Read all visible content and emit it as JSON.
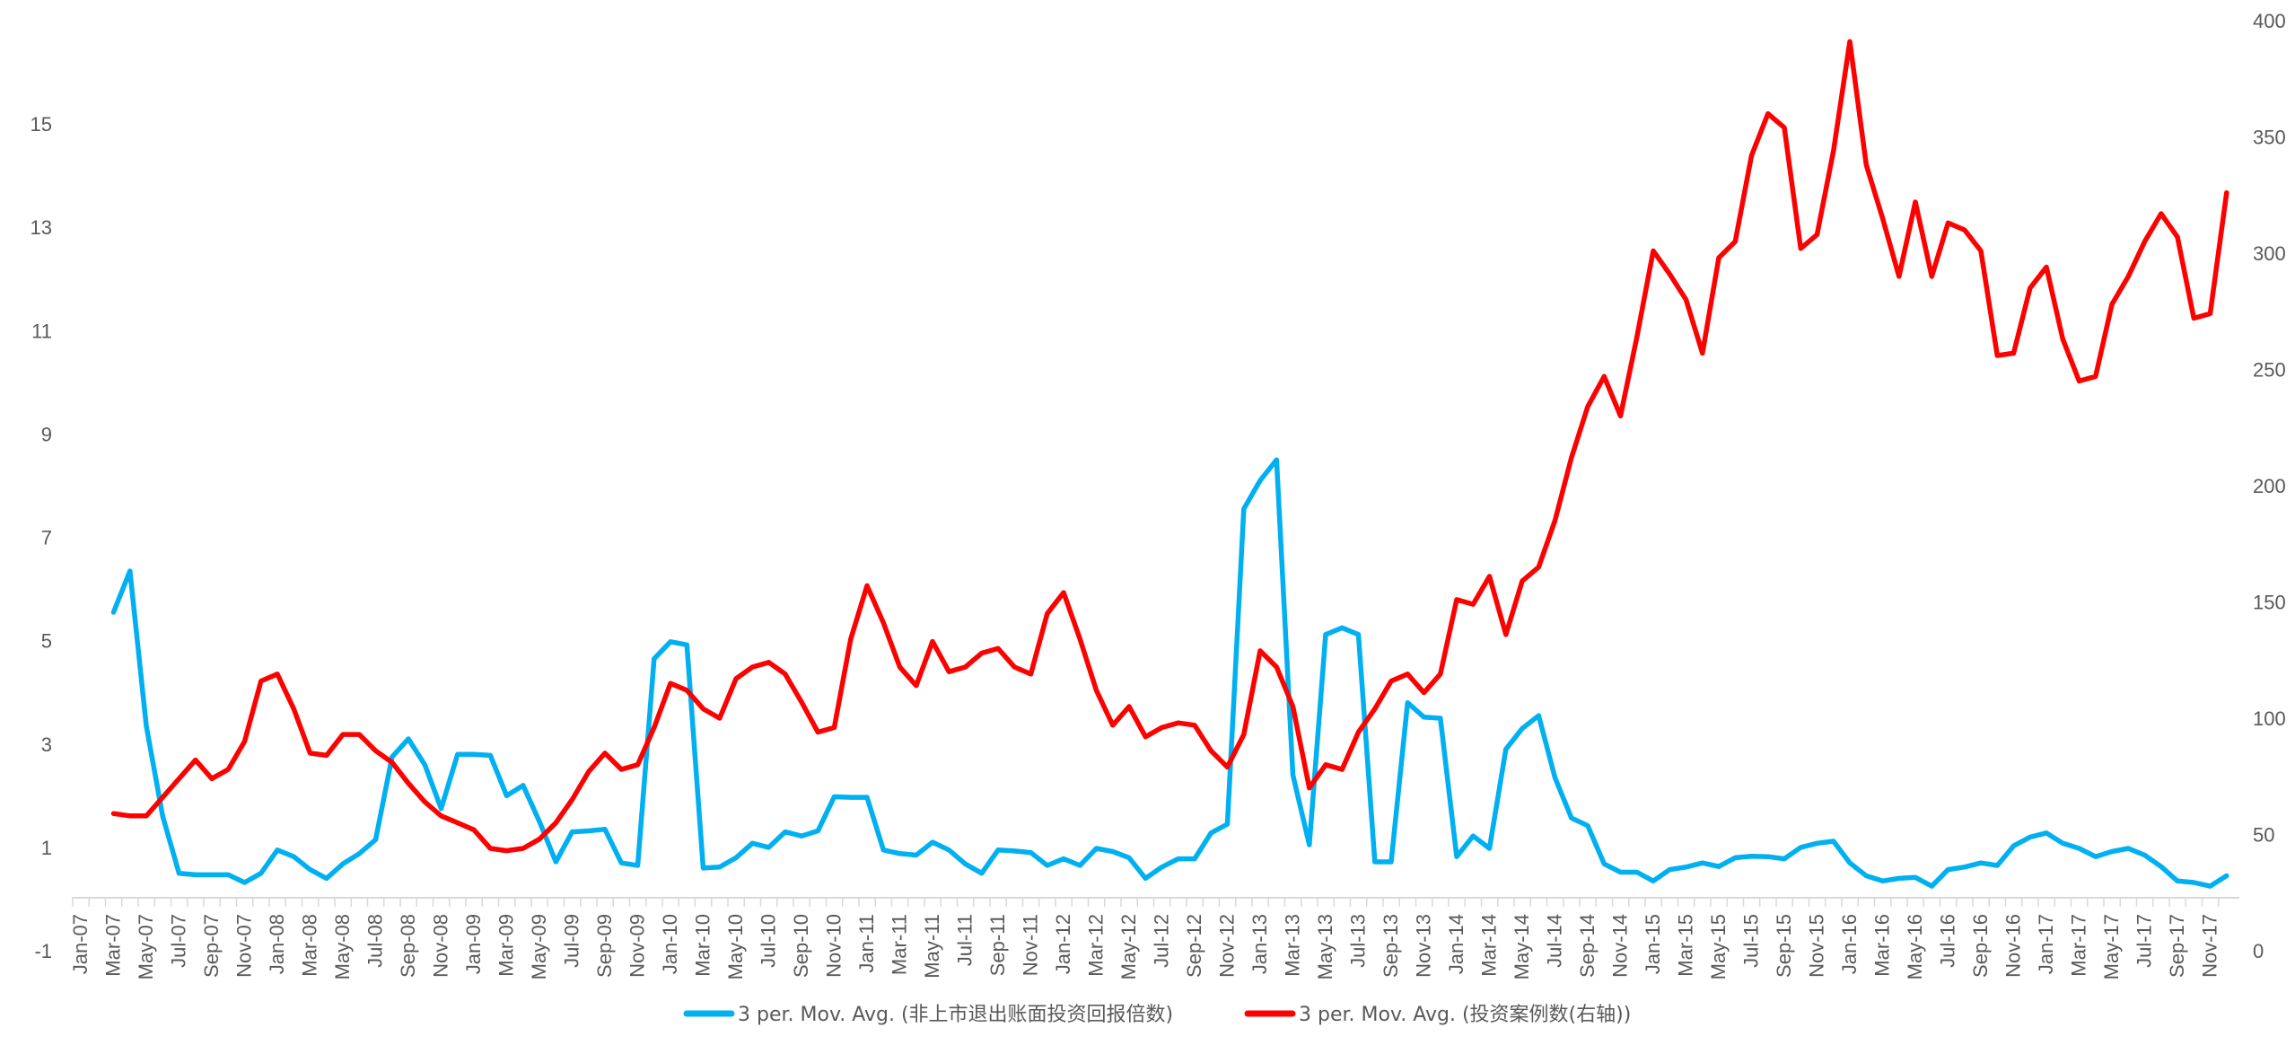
{
  "chart_data": {
    "type": "line",
    "title": "",
    "x_tick_labels": [
      "Jan-07",
      "Mar-07",
      "May-07",
      "Jul-07",
      "Sep-07",
      "Nov-07",
      "Jan-08",
      "Mar-08",
      "May-08",
      "Jul-08",
      "Sep-08",
      "Nov-08",
      "Jan-09",
      "Mar-09",
      "May-09",
      "Jul-09",
      "Sep-09",
      "Nov-09",
      "Jan-10",
      "Mar-10",
      "May-10",
      "Jul-10",
      "Sep-10",
      "Nov-10",
      "Jan-11",
      "Mar-11",
      "May-11",
      "Jul-11",
      "Sep-11",
      "Nov-11",
      "Jan-12",
      "Mar-12",
      "May-12",
      "Jul-12",
      "Sep-12",
      "Nov-12",
      "Jan-13",
      "Mar-13",
      "May-13",
      "Jul-13",
      "Sep-13",
      "Nov-13",
      "Jan-14",
      "Mar-14",
      "May-14",
      "Jul-14",
      "Sep-14",
      "Nov-14",
      "Jan-15",
      "Mar-15",
      "May-15",
      "Jul-15",
      "Sep-15",
      "Nov-15",
      "Jan-16",
      "Mar-16",
      "May-16",
      "Jul-16",
      "Sep-16",
      "Nov-16",
      "Jan-17",
      "Mar-17",
      "May-17",
      "Jul-17",
      "Sep-17",
      "Nov-17"
    ],
    "y_left": {
      "ticks": [
        "-1",
        "1",
        "3",
        "5",
        "7",
        "9",
        "11",
        "13",
        "15"
      ],
      "ylim": [
        -1,
        17
      ]
    },
    "y_right": {
      "ticks": [
        "0",
        "50",
        "100",
        "150",
        "200",
        "250",
        "300",
        "350",
        "400"
      ],
      "ylim": [
        0,
        400
      ]
    },
    "grid": false,
    "legend_position": "bottom",
    "series": [
      {
        "name": "3 per. Mov. Avg. (非上市退出账面投资回报倍数)",
        "axis": "left",
        "color": "#00B0F0",
        "start_index": 2,
        "values": [
          5.55,
          6.35,
          3.35,
          1.6,
          0.5,
          0.47,
          0.47,
          0.47,
          0.32,
          0.5,
          0.95,
          0.82,
          0.57,
          0.4,
          0.68,
          0.88,
          1.15,
          2.75,
          3.1,
          2.6,
          1.75,
          2.8,
          2.8,
          2.78,
          2.0,
          2.2,
          1.5,
          0.72,
          1.3,
          1.32,
          1.35,
          0.7,
          0.65,
          4.65,
          4.98,
          4.92,
          0.6,
          0.62,
          0.8,
          1.08,
          1.0,
          1.3,
          1.22,
          1.32,
          1.98,
          1.97,
          1.97,
          0.95,
          0.88,
          0.85,
          1.1,
          0.95,
          0.68,
          0.5,
          0.95,
          0.93,
          0.9,
          0.65,
          0.78,
          0.65,
          0.98,
          0.92,
          0.8,
          0.4,
          0.62,
          0.78,
          0.78,
          1.28,
          1.45,
          7.55,
          8.1,
          8.5,
          2.4,
          1.05,
          5.12,
          5.25,
          5.12,
          0.72,
          0.72,
          3.8,
          3.52,
          3.5,
          0.82,
          1.22,
          0.98,
          2.9,
          3.3,
          3.55,
          2.35,
          1.57,
          1.42,
          0.68,
          0.52,
          0.52,
          0.35,
          0.57,
          0.62,
          0.7,
          0.63,
          0.8,
          0.83,
          0.82,
          0.78,
          1.0,
          1.08,
          1.12,
          0.7,
          0.45,
          0.35,
          0.4,
          0.42,
          0.25,
          0.57,
          0.62,
          0.7,
          0.65,
          1.03,
          1.2,
          1.28,
          1.08,
          0.98,
          0.82,
          0.92,
          0.98,
          0.85,
          0.63,
          0.35,
          0.32,
          0.25,
          0.45
        ]
      },
      {
        "name": "3 per. Mov. Avg. (投资案例数(右轴))",
        "axis": "right",
        "color": "#FF0000",
        "start_index": 2,
        "values": [
          59,
          58,
          58,
          66,
          74,
          82,
          74,
          78,
          90,
          116,
          119,
          104,
          85,
          84,
          93,
          93,
          86,
          81,
          72,
          64,
          58,
          55,
          52,
          44,
          43,
          44,
          48,
          55,
          65,
          77,
          85,
          78,
          80,
          96,
          115,
          112,
          104,
          100,
          117,
          122,
          124,
          119,
          107,
          94,
          96,
          134,
          157,
          141,
          122,
          114,
          133,
          120,
          122,
          128,
          130,
          122,
          119,
          145,
          154,
          134,
          112,
          97,
          105,
          92,
          96,
          98,
          97,
          86,
          79,
          93,
          129,
          122,
          105,
          70,
          80,
          78,
          94,
          104,
          116,
          119,
          111,
          119,
          151,
          149,
          161,
          136,
          159,
          165,
          185,
          212,
          234,
          247,
          230,
          264,
          301,
          291,
          280,
          257,
          298,
          305,
          342,
          360,
          354,
          302,
          308,
          344,
          391,
          338,
          315,
          290,
          322,
          290,
          313,
          310,
          301,
          256,
          257,
          285,
          294,
          263,
          245,
          247,
          278,
          290,
          305,
          317,
          307,
          272,
          274,
          326
        ]
      }
    ]
  },
  "legend": {
    "items": [
      {
        "label": "3 per. Mov. Avg. (非上市退出账面投资回报倍数)",
        "color": "#00B0F0"
      },
      {
        "label": "3 per. Mov. Avg. (投资案例数(右轴))",
        "color": "#FF0000"
      }
    ]
  }
}
